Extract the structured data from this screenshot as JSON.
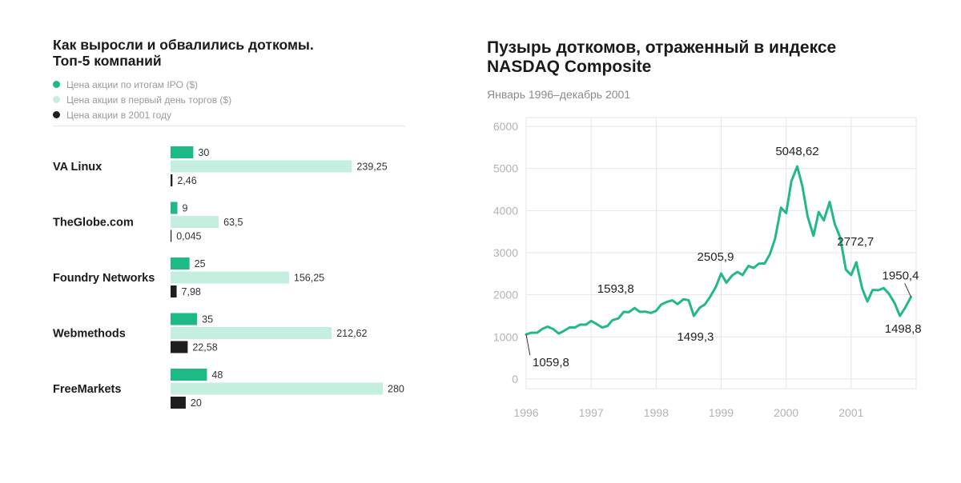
{
  "colors": {
    "ipo": "#1db987",
    "first_day": "#c4eedd",
    "year_2001": "#1e1e1e",
    "line": "#22b889",
    "grid": "#e6e6e6",
    "axis_text": "#b3b3b3"
  },
  "left": {
    "title_line1": "Как выросли и обвалились доткомы.",
    "title_line2": "Топ-5 компаний",
    "legend": [
      {
        "label": "Цена акции по итогам IPO ($)",
        "color_key": "ipo"
      },
      {
        "label": "Цена акции в первый день торгов ($)",
        "color_key": "first_day"
      },
      {
        "label": "Цена акции в 2001 году",
        "color_key": "year_2001"
      }
    ]
  },
  "right": {
    "title_line1": "Пузырь доткомов, отраженный в индексе",
    "title_line2": "NASDAQ Composite",
    "subtitle": "Январь 1996–декабрь 2001"
  },
  "chart_data": [
    {
      "type": "bar",
      "orientation": "horizontal",
      "title": "Как выросли и обвалились доткомы. Топ-5 компаний",
      "categories": [
        "VA Linux",
        "TheGlobe.com",
        "Foundry Networks",
        "Webmethods",
        "FreeMarkets"
      ],
      "series": [
        {
          "name": "Цена акции по итогам IPO ($)",
          "values": [
            30,
            9,
            25,
            35,
            48
          ],
          "labels": [
            "30",
            "9",
            "25",
            "35",
            "48"
          ]
        },
        {
          "name": "Цена акции в первый день торгов ($)",
          "values": [
            239.25,
            63.5,
            156.25,
            212.62,
            280
          ],
          "labels": [
            "239,25",
            "63,5",
            "156,25",
            "212,62",
            "280"
          ]
        },
        {
          "name": "Цена акции в 2001 году",
          "values": [
            2.46,
            0.045,
            7.98,
            22.58,
            20
          ],
          "labels": [
            "2,46",
            "0,045",
            "7,98",
            "22,58",
            "20"
          ]
        }
      ],
      "xlim": [
        0,
        280
      ]
    },
    {
      "type": "line",
      "title": "Пузырь доткомов, отраженный в индексе NASDAQ Composite",
      "subtitle": "Январь 1996–декабрь 2001",
      "x_ticks": [
        "1996",
        "1997",
        "1998",
        "1999",
        "2000",
        "2001"
      ],
      "y_ticks": [
        "0",
        "1000",
        "2000",
        "3000",
        "4000",
        "5000",
        "6000"
      ],
      "ylim": [
        0,
        6000
      ],
      "xlim": [
        1996.0,
        2002.0
      ],
      "x": [
        1996.0,
        1996.08,
        1996.17,
        1996.25,
        1996.33,
        1996.42,
        1996.5,
        1996.58,
        1996.67,
        1996.75,
        1996.83,
        1996.92,
        1997.0,
        1997.08,
        1997.17,
        1997.25,
        1997.33,
        1997.42,
        1997.5,
        1997.58,
        1997.67,
        1997.75,
        1997.83,
        1997.92,
        1998.0,
        1998.08,
        1998.17,
        1998.25,
        1998.33,
        1998.42,
        1998.5,
        1998.58,
        1998.67,
        1998.75,
        1998.83,
        1998.92,
        1999.0,
        1999.08,
        1999.17,
        1999.25,
        1999.33,
        1999.42,
        1999.5,
        1999.58,
        1999.67,
        1999.75,
        1999.83,
        1999.92,
        2000.0,
        2000.08,
        2000.17,
        2000.25,
        2000.33,
        2000.42,
        2000.5,
        2000.58,
        2000.67,
        2000.75,
        2000.83,
        2000.92,
        2001.0,
        2001.08,
        2001.17,
        2001.25,
        2001.33,
        2001.42,
        2001.5,
        2001.58,
        2001.67,
        2001.75,
        2001.83,
        2001.92
      ],
      "values": [
        1059.8,
        1100,
        1101,
        1190,
        1243,
        1185,
        1081,
        1141,
        1227,
        1222,
        1293,
        1291,
        1380,
        1310,
        1222,
        1261,
        1400,
        1442,
        1594,
        1588,
        1686,
        1594,
        1601,
        1570,
        1620,
        1771,
        1835,
        1869,
        1779,
        1895,
        1873,
        1499.3,
        1694,
        1771,
        1950,
        2193,
        2505.9,
        2288,
        2461,
        2543,
        2470,
        2686,
        2638,
        2739,
        2746,
        2966,
        3336,
        4069,
        3940,
        4697,
        5048.62,
        4573,
        3861,
        3400,
        3966,
        3767,
        4206,
        3673,
        3370,
        2597,
        2470,
        2772.7,
        2152,
        1840,
        2116,
        2110,
        2160,
        2027,
        1800,
        1498.8,
        1690,
        1950.4
      ],
      "annotations": [
        {
          "label": "1059,8",
          "index": 0
        },
        {
          "label": "1593,8",
          "index": 18
        },
        {
          "label": "1499,3",
          "index": 31
        },
        {
          "label": "2505,9",
          "index": 36
        },
        {
          "label": "5048,62",
          "index": 50
        },
        {
          "label": "2772,7",
          "index": 61
        },
        {
          "label": "1498,8",
          "index": 69
        },
        {
          "label": "1950,4",
          "index": 71
        }
      ]
    }
  ]
}
